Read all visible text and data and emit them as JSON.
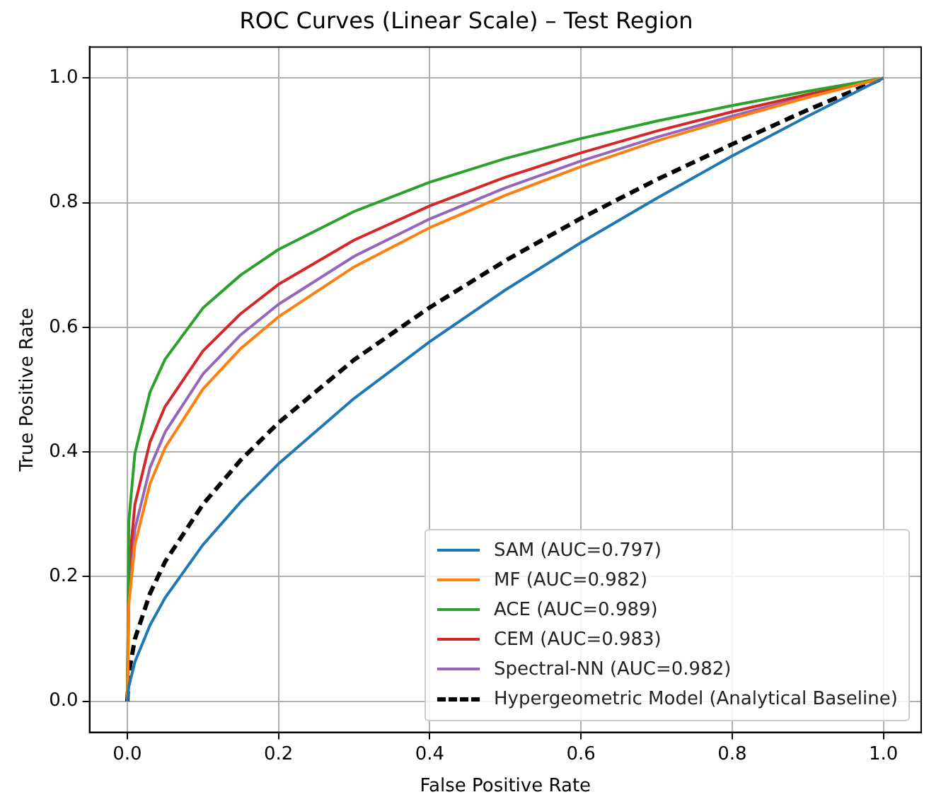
{
  "chart_data": {
    "type": "line",
    "title": "ROC Curves (Linear Scale) – Test Region",
    "xlabel": "False Positive Rate",
    "ylabel": "True Positive Rate",
    "x": [
      0,
      0.002,
      0.01,
      0.03,
      0.05,
      0.1,
      0.15,
      0.2,
      0.3,
      0.4,
      0.5,
      0.6,
      0.7,
      0.8,
      0.9,
      1
    ],
    "series": [
      {
        "name": "SAM (AUC=0.797)",
        "color": "#1f77b4",
        "values": [
          0,
          0.024,
          0.063,
          0.122,
          0.166,
          0.251,
          0.32,
          0.381,
          0.486,
          0.577,
          0.66,
          0.736,
          0.807,
          0.875,
          0.939,
          1
        ]
      },
      {
        "name": "MF (AUC=0.982)",
        "color": "#ff7f0e",
        "values": [
          0,
          0.155,
          0.251,
          0.349,
          0.407,
          0.501,
          0.566,
          0.617,
          0.697,
          0.76,
          0.812,
          0.858,
          0.899,
          0.935,
          0.969,
          1
        ]
      },
      {
        "name": "ACE (AUC=0.989)",
        "color": "#2ca02c",
        "values": [
          0,
          0.289,
          0.398,
          0.496,
          0.549,
          0.631,
          0.684,
          0.725,
          0.786,
          0.833,
          0.871,
          0.903,
          0.931,
          0.956,
          0.979,
          1
        ]
      },
      {
        "name": "CEM (AUC=0.983)",
        "color": "#d62728",
        "values": [
          0,
          0.211,
          0.316,
          0.416,
          0.473,
          0.562,
          0.622,
          0.669,
          0.74,
          0.795,
          0.841,
          0.88,
          0.915,
          0.946,
          0.974,
          1
        ]
      },
      {
        "name": "Spectral-NN (AUC=0.982)",
        "color": "#9467bd",
        "values": [
          0,
          0.175,
          0.276,
          0.375,
          0.432,
          0.525,
          0.588,
          0.637,
          0.714,
          0.774,
          0.824,
          0.867,
          0.905,
          0.939,
          0.971,
          1
        ]
      },
      {
        "name": "Hypergeometric Model (Analytical Baseline)",
        "color": "#000000",
        "line_style": "dashed",
        "values": [
          0,
          0.045,
          0.1,
          0.173,
          0.224,
          0.316,
          0.387,
          0.447,
          0.548,
          0.632,
          0.707,
          0.775,
          0.837,
          0.894,
          0.949,
          1
        ]
      }
    ],
    "xlim": [
      -0.05,
      1.05
    ],
    "ylim": [
      -0.05,
      1.05
    ],
    "xticks": [
      {
        "value": 0,
        "label": "0.0"
      },
      {
        "value": 0.2,
        "label": "0.2"
      },
      {
        "value": 0.4,
        "label": "0.4"
      },
      {
        "value": 0.6,
        "label": "0.6"
      },
      {
        "value": 0.8,
        "label": "0.8"
      },
      {
        "value": 1,
        "label": "1.0"
      }
    ],
    "yticks": [
      {
        "value": 0,
        "label": "0.0"
      },
      {
        "value": 0.2,
        "label": "0.2"
      },
      {
        "value": 0.4,
        "label": "0.4"
      },
      {
        "value": 0.6,
        "label": "0.6"
      },
      {
        "value": 0.8,
        "label": "0.8"
      },
      {
        "value": 1,
        "label": "1.0"
      }
    ],
    "grid": true,
    "legend": "bottom right",
    "marker": "none"
  }
}
